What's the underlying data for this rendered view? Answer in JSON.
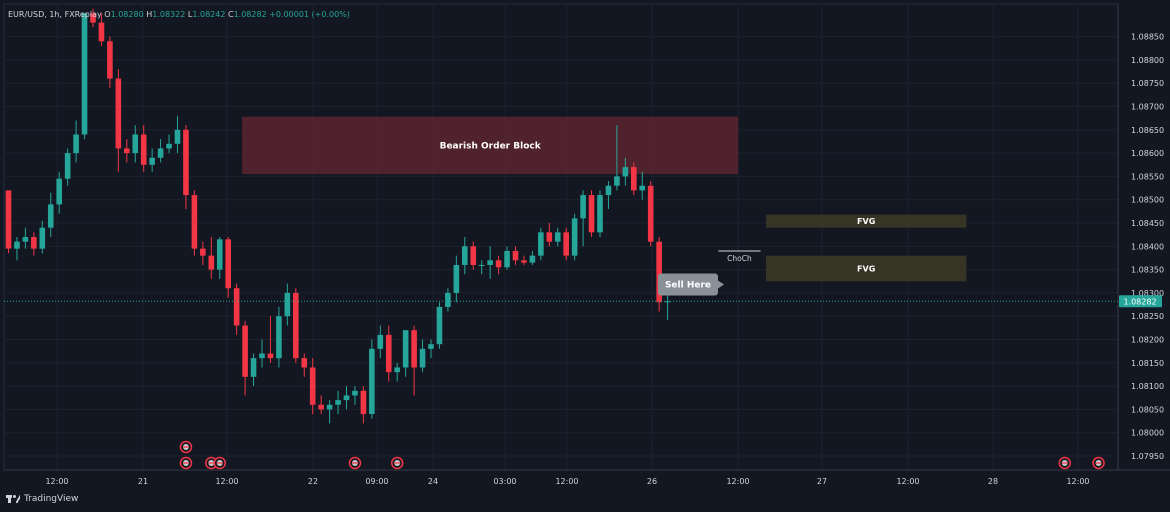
{
  "header": {
    "symbol": "EUR/USD, 1h, FXReplay",
    "o_label": "O",
    "o_value": "1.08280",
    "h_label": "H",
    "h_value": "1.08322",
    "l_label": "L",
    "l_value": "1.08242",
    "c_label": "C",
    "c_value": "1.08282",
    "change": "+0.00001 (+0.00%)"
  },
  "footer": {
    "brand": "TradingView"
  },
  "colors": {
    "background": "#131722",
    "bull": "#26a69a",
    "bear": "#f23645",
    "order_block": "#5c2530",
    "fvg": "#3d3a25",
    "price_tag": "#26a69a",
    "callout": "#8a9098"
  },
  "chart_data": {
    "type": "candlestick",
    "title": "EUR/USD, 1h, FXReplay",
    "ylim": [
      1.0792,
      1.0892
    ],
    "grid": true,
    "y_ticks": [
      "1.08850",
      "1.08800",
      "1.08750",
      "1.08700",
      "1.08650",
      "1.08600",
      "1.08550",
      "1.08500",
      "1.08450",
      "1.08400",
      "1.08350",
      "1.08300",
      "1.08250",
      "1.08200",
      "1.08150",
      "1.08100",
      "1.08050",
      "1.08000",
      "1.07950"
    ],
    "x_ticks": [
      "12:00",
      "21",
      "12:00",
      "22",
      "09:00",
      "24",
      "03:00",
      "12:00",
      "26",
      "12:00",
      "27",
      "12:00",
      "28",
      "12:00"
    ],
    "last_price": "1.08282",
    "candles": [
      {
        "o": 1.0852,
        "h": 1.0852,
        "l": 1.08385,
        "c": 1.08395
      },
      {
        "o": 1.08395,
        "h": 1.0842,
        "l": 1.0837,
        "c": 1.0841
      },
      {
        "o": 1.0841,
        "h": 1.0844,
        "l": 1.08395,
        "c": 1.0842
      },
      {
        "o": 1.0842,
        "h": 1.0843,
        "l": 1.0838,
        "c": 1.08395
      },
      {
        "o": 1.08395,
        "h": 1.08455,
        "l": 1.08385,
        "c": 1.0844
      },
      {
        "o": 1.0844,
        "h": 1.08515,
        "l": 1.0842,
        "c": 1.0849
      },
      {
        "o": 1.0849,
        "h": 1.0856,
        "l": 1.0847,
        "c": 1.08545
      },
      {
        "o": 1.08545,
        "h": 1.0861,
        "l": 1.0853,
        "c": 1.086
      },
      {
        "o": 1.086,
        "h": 1.0867,
        "l": 1.0858,
        "c": 1.0864
      },
      {
        "o": 1.0864,
        "h": 1.089,
        "l": 1.0863,
        "c": 1.089
      },
      {
        "o": 1.089,
        "h": 1.0891,
        "l": 1.0887,
        "c": 1.0888
      },
      {
        "o": 1.0888,
        "h": 1.089,
        "l": 1.0883,
        "c": 1.0884
      },
      {
        "o": 1.0884,
        "h": 1.0885,
        "l": 1.0874,
        "c": 1.0876
      },
      {
        "o": 1.0876,
        "h": 1.0878,
        "l": 1.0856,
        "c": 1.0861
      },
      {
        "o": 1.0861,
        "h": 1.0863,
        "l": 1.0858,
        "c": 1.086
      },
      {
        "o": 1.086,
        "h": 1.0866,
        "l": 1.0858,
        "c": 1.0864
      },
      {
        "o": 1.0864,
        "h": 1.0866,
        "l": 1.0856,
        "c": 1.08575
      },
      {
        "o": 1.08575,
        "h": 1.0861,
        "l": 1.0856,
        "c": 1.0859
      },
      {
        "o": 1.0859,
        "h": 1.0863,
        "l": 1.0858,
        "c": 1.0861
      },
      {
        "o": 1.0861,
        "h": 1.0864,
        "l": 1.086,
        "c": 1.0862
      },
      {
        "o": 1.0862,
        "h": 1.0868,
        "l": 1.086,
        "c": 1.0865
      },
      {
        "o": 1.0865,
        "h": 1.0866,
        "l": 1.0848,
        "c": 1.0851
      },
      {
        "o": 1.0851,
        "h": 1.0852,
        "l": 1.0838,
        "c": 1.08395
      },
      {
        "o": 1.08395,
        "h": 1.0841,
        "l": 1.0836,
        "c": 1.0838
      },
      {
        "o": 1.0838,
        "h": 1.0842,
        "l": 1.0833,
        "c": 1.0835
      },
      {
        "o": 1.0835,
        "h": 1.0842,
        "l": 1.0833,
        "c": 1.08415
      },
      {
        "o": 1.08415,
        "h": 1.0842,
        "l": 1.0829,
        "c": 1.0831
      },
      {
        "o": 1.0831,
        "h": 1.0832,
        "l": 1.0821,
        "c": 1.0823
      },
      {
        "o": 1.0823,
        "h": 1.0824,
        "l": 1.0808,
        "c": 1.0812
      },
      {
        "o": 1.0812,
        "h": 1.0817,
        "l": 1.081,
        "c": 1.0816
      },
      {
        "o": 1.0816,
        "h": 1.082,
        "l": 1.0814,
        "c": 1.0817
      },
      {
        "o": 1.0817,
        "h": 1.0825,
        "l": 1.0815,
        "c": 1.0816
      },
      {
        "o": 1.0816,
        "h": 1.0827,
        "l": 1.0814,
        "c": 1.0825
      },
      {
        "o": 1.0825,
        "h": 1.0832,
        "l": 1.0823,
        "c": 1.083
      },
      {
        "o": 1.083,
        "h": 1.0831,
        "l": 1.0815,
        "c": 1.0816
      },
      {
        "o": 1.0816,
        "h": 1.0817,
        "l": 1.0812,
        "c": 1.0814
      },
      {
        "o": 1.0814,
        "h": 1.0816,
        "l": 1.0804,
        "c": 1.0806
      },
      {
        "o": 1.0806,
        "h": 1.0808,
        "l": 1.0804,
        "c": 1.0805
      },
      {
        "o": 1.0805,
        "h": 1.0807,
        "l": 1.0802,
        "c": 1.0806
      },
      {
        "o": 1.0806,
        "h": 1.0809,
        "l": 1.0804,
        "c": 1.0807
      },
      {
        "o": 1.0807,
        "h": 1.081,
        "l": 1.0805,
        "c": 1.0808
      },
      {
        "o": 1.0808,
        "h": 1.081,
        "l": 1.0806,
        "c": 1.0809
      },
      {
        "o": 1.0809,
        "h": 1.081,
        "l": 1.0802,
        "c": 1.0804
      },
      {
        "o": 1.0804,
        "h": 1.082,
        "l": 1.0803,
        "c": 1.0818
      },
      {
        "o": 1.0818,
        "h": 1.0823,
        "l": 1.0816,
        "c": 1.0821
      },
      {
        "o": 1.0821,
        "h": 1.0823,
        "l": 1.0811,
        "c": 1.0813
      },
      {
        "o": 1.0813,
        "h": 1.0815,
        "l": 1.0811,
        "c": 1.0814
      },
      {
        "o": 1.0814,
        "h": 1.0822,
        "l": 1.0812,
        "c": 1.0822
      },
      {
        "o": 1.0822,
        "h": 1.0823,
        "l": 1.0808,
        "c": 1.0814
      },
      {
        "o": 1.0814,
        "h": 1.082,
        "l": 1.0813,
        "c": 1.0818
      },
      {
        "o": 1.0818,
        "h": 1.082,
        "l": 1.0816,
        "c": 1.0819
      },
      {
        "o": 1.0819,
        "h": 1.0828,
        "l": 1.0818,
        "c": 1.0827
      },
      {
        "o": 1.0827,
        "h": 1.0831,
        "l": 1.0826,
        "c": 1.083
      },
      {
        "o": 1.083,
        "h": 1.0838,
        "l": 1.0828,
        "c": 1.0836
      },
      {
        "o": 1.0836,
        "h": 1.0842,
        "l": 1.0834,
        "c": 1.084
      },
      {
        "o": 1.084,
        "h": 1.0841,
        "l": 1.0835,
        "c": 1.0836
      },
      {
        "o": 1.0836,
        "h": 1.0837,
        "l": 1.0834,
        "c": 1.0836
      },
      {
        "o": 1.0836,
        "h": 1.084,
        "l": 1.0833,
        "c": 1.0837
      },
      {
        "o": 1.0837,
        "h": 1.0838,
        "l": 1.0834,
        "c": 1.08355
      },
      {
        "o": 1.08355,
        "h": 1.084,
        "l": 1.0835,
        "c": 1.0839
      },
      {
        "o": 1.0839,
        "h": 1.084,
        "l": 1.0836,
        "c": 1.0837
      },
      {
        "o": 1.0837,
        "h": 1.0838,
        "l": 1.0836,
        "c": 1.08365
      },
      {
        "o": 1.08365,
        "h": 1.0839,
        "l": 1.0836,
        "c": 1.0838
      },
      {
        "o": 1.0838,
        "h": 1.0844,
        "l": 1.0837,
        "c": 1.0843
      },
      {
        "o": 1.0843,
        "h": 1.0845,
        "l": 1.084,
        "c": 1.0841
      },
      {
        "o": 1.0841,
        "h": 1.0844,
        "l": 1.084,
        "c": 1.0843
      },
      {
        "o": 1.0843,
        "h": 1.0844,
        "l": 1.0837,
        "c": 1.0838
      },
      {
        "o": 1.0838,
        "h": 1.0847,
        "l": 1.0837,
        "c": 1.0846
      },
      {
        "o": 1.0846,
        "h": 1.0852,
        "l": 1.084,
        "c": 1.0851
      },
      {
        "o": 1.0851,
        "h": 1.0852,
        "l": 1.0842,
        "c": 1.0843
      },
      {
        "o": 1.0843,
        "h": 1.0852,
        "l": 1.0842,
        "c": 1.0851
      },
      {
        "o": 1.0851,
        "h": 1.0854,
        "l": 1.0848,
        "c": 1.0853
      },
      {
        "o": 1.0853,
        "h": 1.0866,
        "l": 1.0852,
        "c": 1.0855
      },
      {
        "o": 1.0855,
        "h": 1.0859,
        "l": 1.0853,
        "c": 1.0857
      },
      {
        "o": 1.0857,
        "h": 1.0858,
        "l": 1.0851,
        "c": 1.0852
      },
      {
        "o": 1.0852,
        "h": 1.0856,
        "l": 1.085,
        "c": 1.0853
      },
      {
        "o": 1.0853,
        "h": 1.0854,
        "l": 1.084,
        "c": 1.0841
      },
      {
        "o": 1.0841,
        "h": 1.0842,
        "l": 1.0826,
        "c": 1.0828
      },
      {
        "o": 1.0828,
        "h": 1.08322,
        "l": 1.08242,
        "c": 1.08282
      }
    ],
    "zones": [
      {
        "label": "Bearish Order Block",
        "from_candle": 28,
        "to_candle": 86,
        "top": 1.08678,
        "bottom": 1.08555,
        "kind": "order_block"
      },
      {
        "label": "FVG",
        "from_candle": 90,
        "to_candle": 113,
        "top": 1.08468,
        "bottom": 1.0844,
        "kind": "fvg"
      },
      {
        "label": "FVG",
        "from_candle": 90,
        "to_candle": 113,
        "top": 1.0838,
        "bottom": 1.08325,
        "kind": "fvg"
      }
    ],
    "choch": {
      "label": "ChoCh",
      "price": 1.0839,
      "from_candle": 84,
      "to_candle": 89
    },
    "callout": {
      "label": "Sell Here",
      "price": 1.08318
    },
    "markers": [
      {
        "candle": 21,
        "row": 1
      },
      {
        "candle": 21,
        "row": 0
      },
      {
        "candle": 24,
        "row": 0
      },
      {
        "candle": 25,
        "row": 0
      },
      {
        "candle": 41,
        "row": 0
      },
      {
        "candle": 46,
        "row": 0
      },
      {
        "candle": 125,
        "row": 0
      },
      {
        "candle": 129,
        "row": 0
      }
    ]
  }
}
